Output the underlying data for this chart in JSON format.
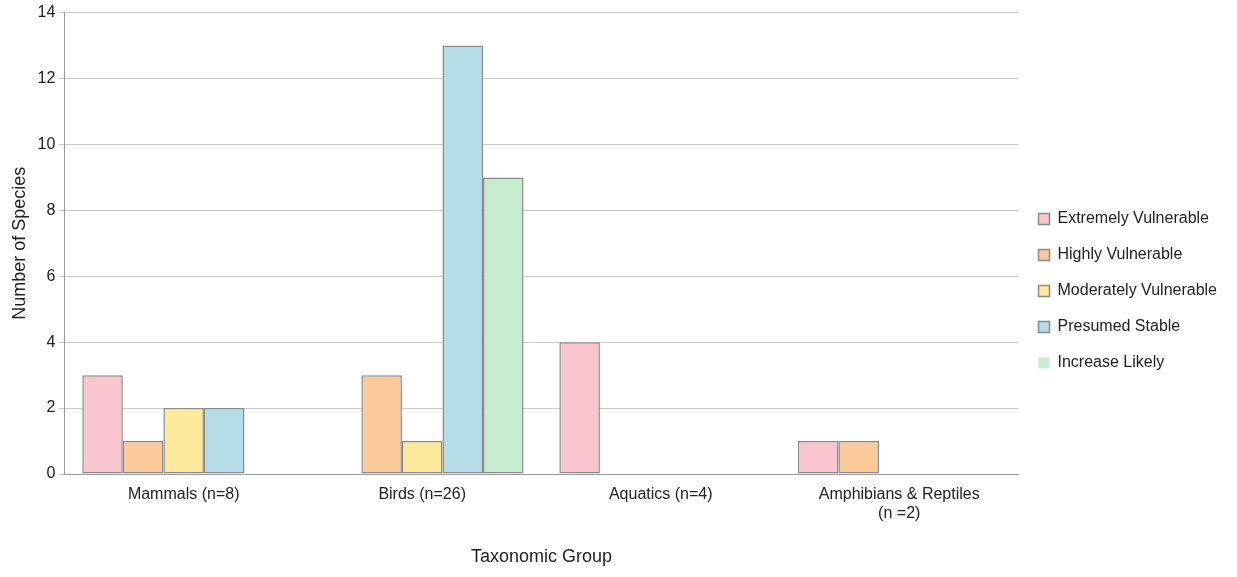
{
  "chart_data": {
    "type": "bar",
    "xlabel": "Taxonomic Group",
    "ylabel": "Number of Species",
    "categories": [
      "Mammals (n=8)",
      "Birds (n=26)",
      "Aquatics (n=4)",
      "Amphibians & Reptiles\n(n =2)"
    ],
    "series": [
      {
        "name": "Extremely Vulnerable",
        "color": "#f9c6d0",
        "values": [
          3,
          0,
          4,
          1
        ]
      },
      {
        "name": "Highly Vulnerable",
        "color": "#fbca9b",
        "values": [
          1,
          3,
          0,
          1
        ]
      },
      {
        "name": "Moderately Vulnerable",
        "color": "#fde99b",
        "values": [
          2,
          1,
          0,
          0
        ]
      },
      {
        "name": "Presumed Stable",
        "color": "#b5dce7",
        "values": [
          2,
          13,
          0,
          0
        ]
      },
      {
        "name": "Increase Likely",
        "color": "#c5ecce",
        "values": [
          0,
          9,
          0,
          0
        ]
      }
    ],
    "ylim": [
      0,
      14
    ],
    "yticks": [
      0,
      2,
      4,
      6,
      8,
      10,
      12,
      14
    ],
    "grid": "y",
    "legend": "right"
  }
}
